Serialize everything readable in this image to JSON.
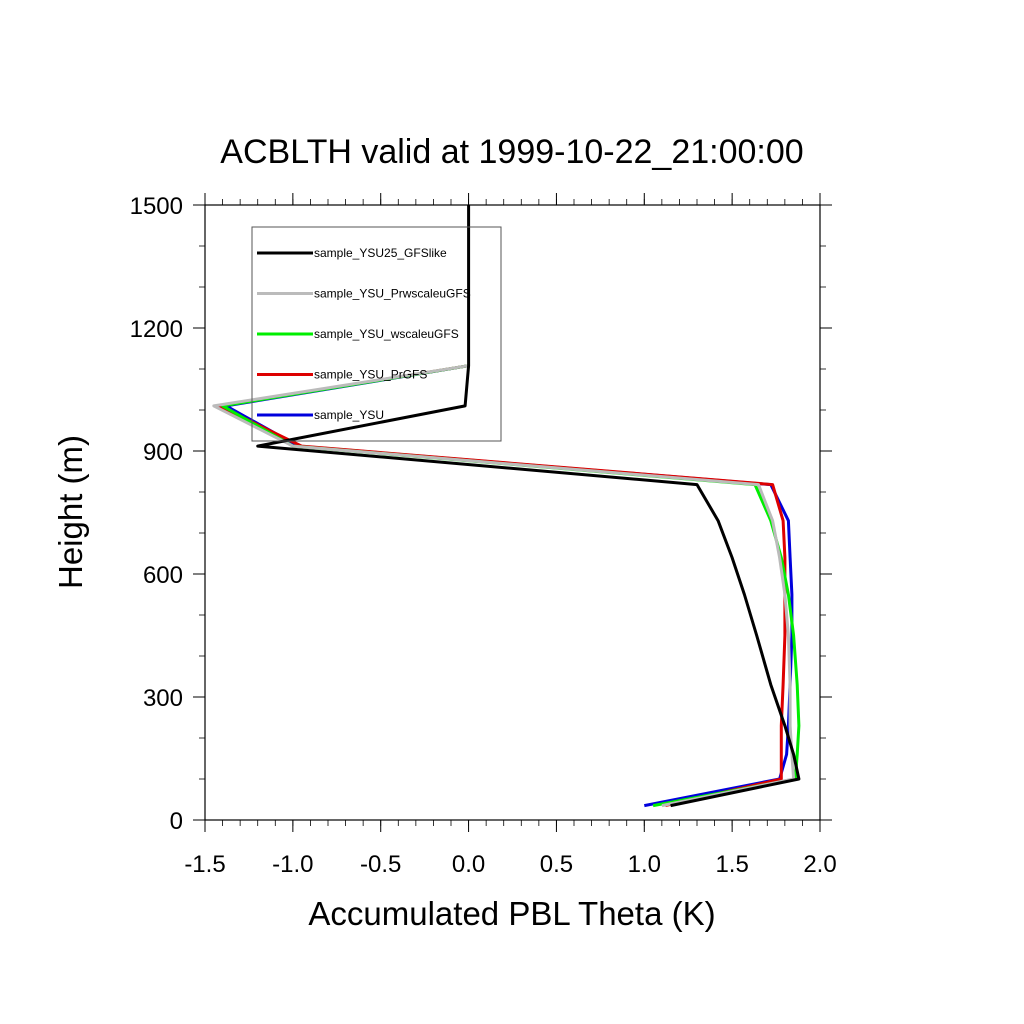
{
  "chart_data": {
    "type": "line",
    "title": "ACBLTH valid at 1999-10-22_21:00:00",
    "xlabel": "Accumulated PBL Theta (K)",
    "ylabel": "Height (m)",
    "xlim": [
      -1.5,
      2.0
    ],
    "ylim": [
      0,
      1500
    ],
    "x_ticks": [
      -1.5,
      -1.0,
      -0.5,
      0.0,
      0.5,
      1.0,
      1.5,
      2.0
    ],
    "x_tick_labels": [
      "-1.5",
      "-1.0",
      "-0.5",
      "0.0",
      "0.5",
      "1.0",
      "1.5",
      "2.0"
    ],
    "y_ticks": [
      0,
      300,
      600,
      900,
      1200,
      1500
    ],
    "y_tick_labels": [
      "0",
      "300",
      "600",
      "900",
      "1200",
      "1500"
    ],
    "grid": false,
    "legend_position": "top-left",
    "series": [
      {
        "name": "sample_YSU25_GFSlike",
        "color": "#000000",
        "points": [
          [
            0.0,
            1500
          ],
          [
            0.0,
            1200
          ],
          [
            0.0,
            1108
          ],
          [
            -0.02,
            1010
          ],
          [
            -1.2,
            912
          ],
          [
            1.3,
            818
          ],
          [
            1.42,
            730
          ],
          [
            1.5,
            640
          ],
          [
            1.57,
            550
          ],
          [
            1.64,
            450
          ],
          [
            1.72,
            330
          ],
          [
            1.8,
            230
          ],
          [
            1.85,
            160
          ],
          [
            1.88,
            100
          ],
          [
            1.15,
            35
          ]
        ]
      },
      {
        "name": "sample_YSU_PrwscaleuGFS",
        "color": "#bbbbbb",
        "points": [
          [
            0.0,
            1108
          ],
          [
            -1.45,
            1010
          ],
          [
            -1.0,
            912
          ],
          [
            1.65,
            818
          ],
          [
            1.73,
            730
          ],
          [
            1.77,
            640
          ],
          [
            1.8,
            550
          ],
          [
            1.82,
            450
          ],
          [
            1.83,
            330
          ],
          [
            1.83,
            230
          ],
          [
            1.84,
            160
          ],
          [
            1.85,
            100
          ],
          [
            1.1,
            35
          ]
        ]
      },
      {
        "name": "sample_YSU_wscaleuGFS",
        "color": "#00ee00",
        "points": [
          [
            0.0,
            1108
          ],
          [
            -1.4,
            1010
          ],
          [
            -1.0,
            912
          ],
          [
            1.63,
            818
          ],
          [
            1.72,
            730
          ],
          [
            1.78,
            640
          ],
          [
            1.82,
            550
          ],
          [
            1.85,
            450
          ],
          [
            1.87,
            330
          ],
          [
            1.88,
            230
          ],
          [
            1.87,
            160
          ],
          [
            1.86,
            100
          ],
          [
            1.05,
            35
          ]
        ]
      },
      {
        "name": "sample_YSU_PrGFS",
        "color": "#dd0000",
        "points": [
          [
            0.0,
            1108
          ],
          [
            -1.42,
            1010
          ],
          [
            -0.95,
            912
          ],
          [
            1.73,
            818
          ],
          [
            1.79,
            730
          ],
          [
            1.8,
            640
          ],
          [
            1.8,
            550
          ],
          [
            1.8,
            450
          ],
          [
            1.79,
            330
          ],
          [
            1.78,
            230
          ],
          [
            1.78,
            160
          ],
          [
            1.78,
            100
          ],
          [
            1.12,
            35
          ]
        ]
      },
      {
        "name": "sample_YSU",
        "color": "#0000dd",
        "points": [
          [
            0.0,
            1108
          ],
          [
            -1.38,
            1010
          ],
          [
            -0.97,
            912
          ],
          [
            1.72,
            818
          ],
          [
            1.82,
            730
          ],
          [
            1.83,
            640
          ],
          [
            1.84,
            550
          ],
          [
            1.84,
            450
          ],
          [
            1.83,
            330
          ],
          [
            1.82,
            230
          ],
          [
            1.81,
            160
          ],
          [
            1.77,
            100
          ],
          [
            1.0,
            35
          ]
        ]
      }
    ]
  }
}
